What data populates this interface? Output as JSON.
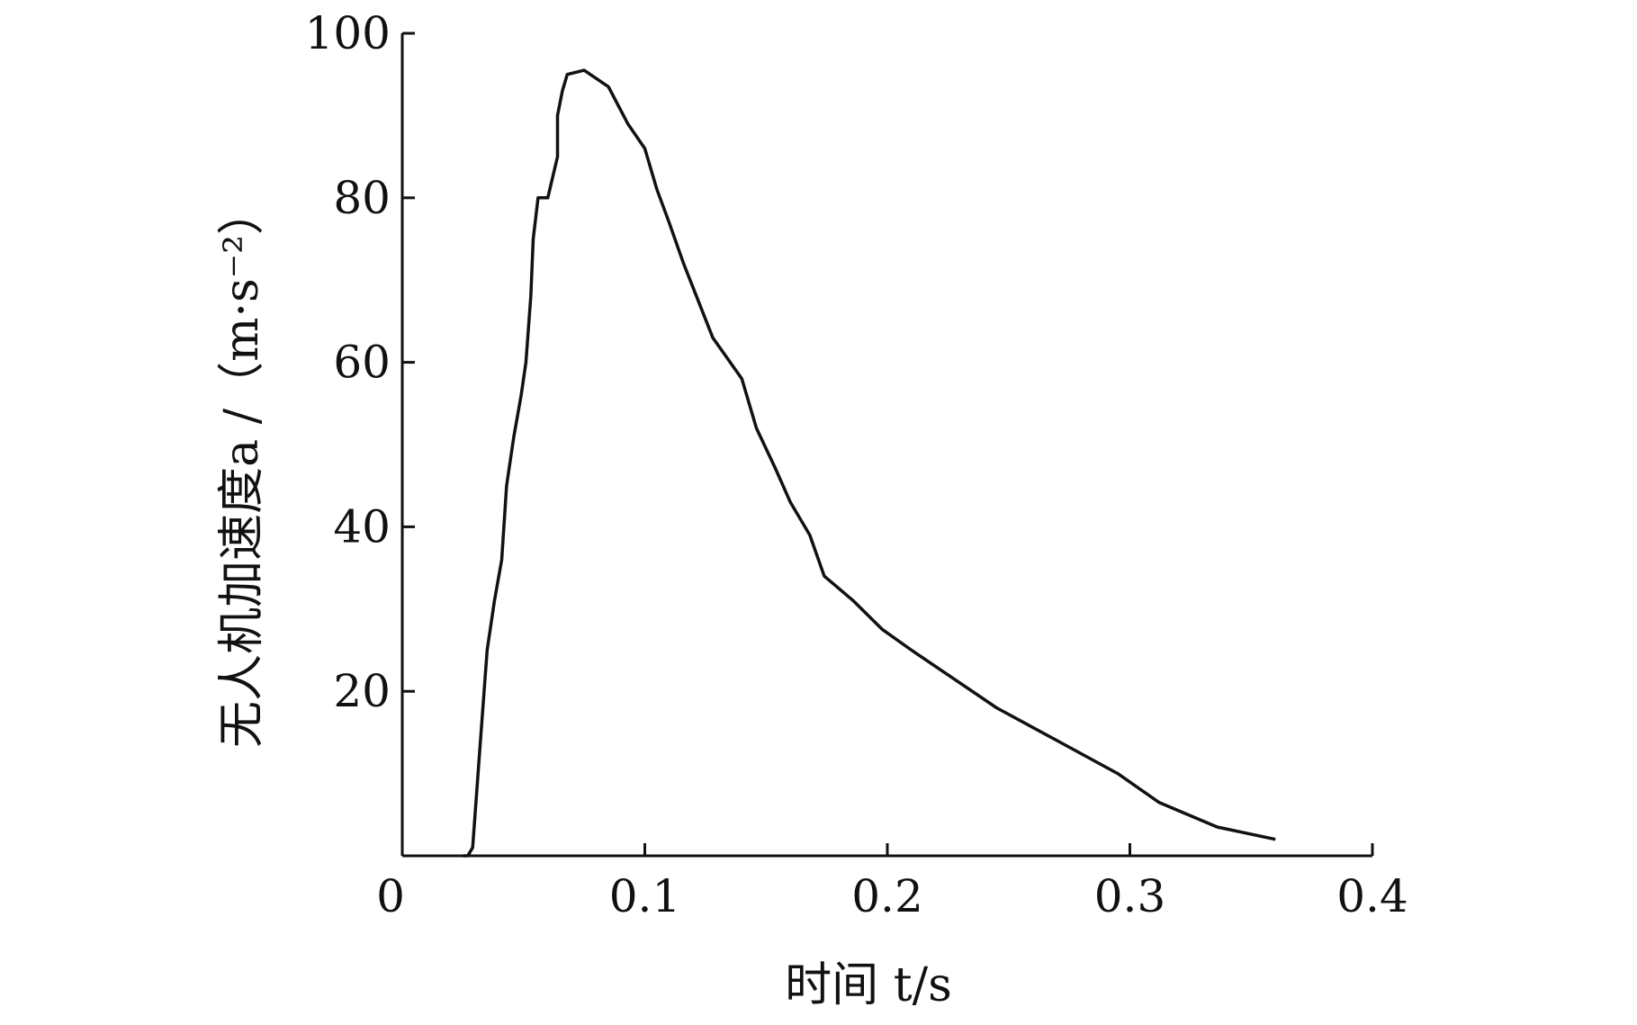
{
  "chart_data": {
    "type": "line",
    "title": "",
    "xlabel": "时间 t/s",
    "ylabel": "无人机加速度a /（m·s⁻²）",
    "xlim": [
      0,
      0.4
    ],
    "ylim": [
      0,
      100
    ],
    "x_ticks": [
      "0",
      "0.1",
      "0.2",
      "0.3",
      "0.4"
    ],
    "y_ticks": [
      "20",
      "40",
      "60",
      "80",
      "100"
    ],
    "x_tick_values": [
      0,
      0.1,
      0.2,
      0.3,
      0.4
    ],
    "y_tick_values": [
      20,
      40,
      60,
      80,
      100
    ],
    "grid": false,
    "legend": "none",
    "line_color": "#111111",
    "series": [
      {
        "x": [
          0.025,
          0.027,
          0.029,
          0.032,
          0.035,
          0.038,
          0.041,
          0.043,
          0.046,
          0.049,
          0.051,
          0.053,
          0.054,
          0.056,
          0.06,
          0.064,
          0.064,
          0.066,
          0.068,
          0.075,
          0.085,
          0.093,
          0.1,
          0.105,
          0.11,
          0.116,
          0.12,
          0.128,
          0.14,
          0.146,
          0.154,
          0.16,
          0.168,
          0.174,
          0.186,
          0.198,
          0.21,
          0.225,
          0.245,
          0.27,
          0.295,
          0.312,
          0.336,
          0.36
        ],
        "y": [
          0,
          0,
          1,
          13,
          25,
          31,
          36,
          45,
          51,
          56,
          60,
          68,
          75,
          80,
          80,
          85,
          90,
          93,
          95,
          95.5,
          93.5,
          89,
          86,
          81,
          77,
          72,
          69,
          63,
          58,
          52,
          47,
          43,
          39,
          34,
          31,
          27.5,
          25,
          22,
          18,
          14,
          10,
          6.5,
          3.5,
          2
        ]
      }
    ]
  }
}
